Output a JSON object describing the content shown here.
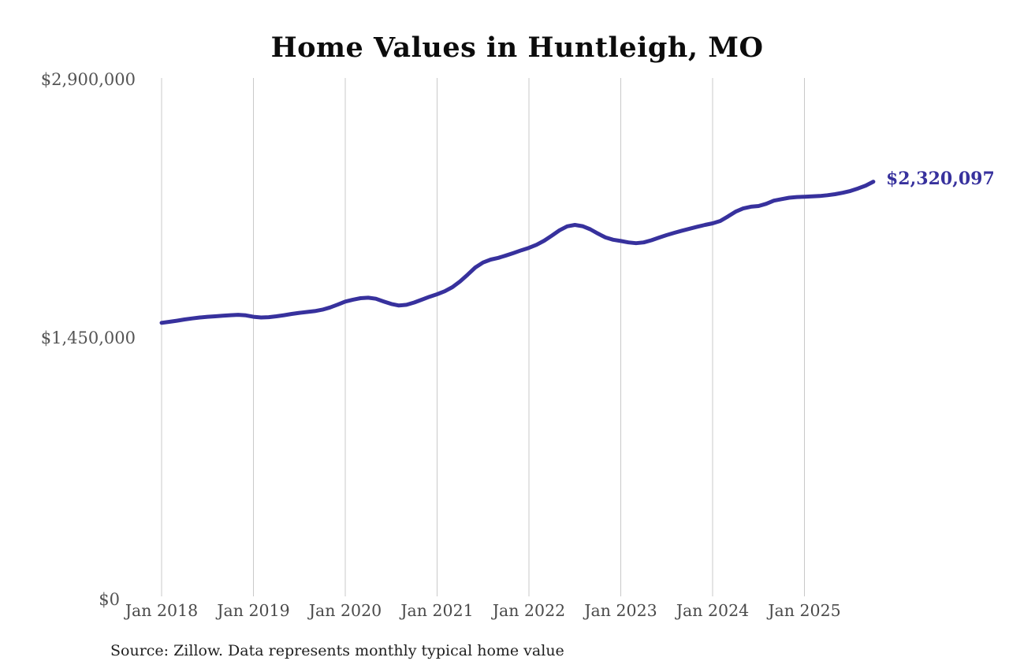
{
  "chart_data": {
    "type": "line",
    "title": "Home Values in Huntleigh, MO",
    "series_name": "Monthly typical home value",
    "months": [
      "Jan 2018",
      "Feb 2018",
      "Mar 2018",
      "Apr 2018",
      "May 2018",
      "Jun 2018",
      "Jul 2018",
      "Aug 2018",
      "Sep 2018",
      "Oct 2018",
      "Nov 2018",
      "Dec 2018",
      "Jan 2019",
      "Feb 2019",
      "Mar 2019",
      "Apr 2019",
      "May 2019",
      "Jun 2019",
      "Jul 2019",
      "Aug 2019",
      "Sep 2019",
      "Oct 2019",
      "Nov 2019",
      "Dec 2019",
      "Jan 2020",
      "Feb 2020",
      "Mar 2020",
      "Apr 2020",
      "May 2020",
      "Jun 2020",
      "Jul 2020",
      "Aug 2020",
      "Sep 2020",
      "Oct 2020",
      "Nov 2020",
      "Dec 2020",
      "Jan 2021",
      "Feb 2021",
      "Mar 2021",
      "Apr 2021",
      "May 2021",
      "Jun 2021",
      "Jul 2021",
      "Aug 2021",
      "Sep 2021",
      "Oct 2021",
      "Nov 2021",
      "Dec 2021",
      "Jan 2022",
      "Feb 2022",
      "Mar 2022",
      "Apr 2022",
      "May 2022",
      "Jun 2022",
      "Jul 2022",
      "Aug 2022",
      "Sep 2022",
      "Oct 2022",
      "Nov 2022",
      "Dec 2022",
      "Jan 2023",
      "Feb 2023",
      "Mar 2023",
      "Apr 2023",
      "May 2023",
      "Jun 2023",
      "Jul 2023",
      "Aug 2023",
      "Sep 2023",
      "Oct 2023",
      "Nov 2023",
      "Dec 2023",
      "Jan 2024",
      "Feb 2024",
      "Mar 2024",
      "Apr 2024",
      "May 2024",
      "Jun 2024",
      "Jul 2024",
      "Aug 2024",
      "Sep 2024",
      "Oct 2024",
      "Nov 2024",
      "Dec 2024",
      "Jan 2025",
      "Feb 2025",
      "Mar 2025",
      "Apr 2025",
      "May 2025",
      "Jun 2025",
      "Jul 2025",
      "Aug 2025",
      "Sep 2025",
      "Oct 2025"
    ],
    "values": [
      1530000,
      1536000,
      1542000,
      1549000,
      1555000,
      1560000,
      1564000,
      1567000,
      1570000,
      1573000,
      1575000,
      1572000,
      1564000,
      1560000,
      1562000,
      1567000,
      1573000,
      1580000,
      1586000,
      1591000,
      1596000,
      1604000,
      1616000,
      1632000,
      1649000,
      1660000,
      1668000,
      1671000,
      1665000,
      1650000,
      1636000,
      1627000,
      1631000,
      1644000,
      1660000,
      1676000,
      1690000,
      1707000,
      1730000,
      1762000,
      1800000,
      1840000,
      1868000,
      1884000,
      1894000,
      1907000,
      1921000,
      1936000,
      1950000,
      1967000,
      1990000,
      2018000,
      2048000,
      2070000,
      2078000,
      2071000,
      2054000,
      2030000,
      2008000,
      1995000,
      1988000,
      1980000,
      1976000,
      1980000,
      1992000,
      2007000,
      2021000,
      2034000,
      2046000,
      2057000,
      2068000,
      2078000,
      2087000,
      2100000,
      2125000,
      2152000,
      2170000,
      2180000,
      2184000,
      2196000,
      2214000,
      2222000,
      2230000,
      2234000,
      2236000,
      2238000,
      2240000,
      2244000,
      2250000,
      2258000,
      2268000,
      2282000,
      2298000,
      2320097
    ],
    "x_tick_labels": [
      "Jan 2018",
      "Jan 2019",
      "Jan 2020",
      "Jan 2021",
      "Jan 2022",
      "Jan 2023",
      "Jan 2024",
      "Jan 2025"
    ],
    "y_tick_labels": [
      "$0",
      "$1,450,000",
      "$2,900,000"
    ],
    "ylim": [
      0,
      2900000
    ],
    "grid": "vertical-only",
    "legend": "none",
    "end_label": "$2,320,097",
    "line_color": "#37319d",
    "grid_color": "#c9c9c9",
    "source_note": "Source: Zillow. Data represents monthly typical home value"
  }
}
